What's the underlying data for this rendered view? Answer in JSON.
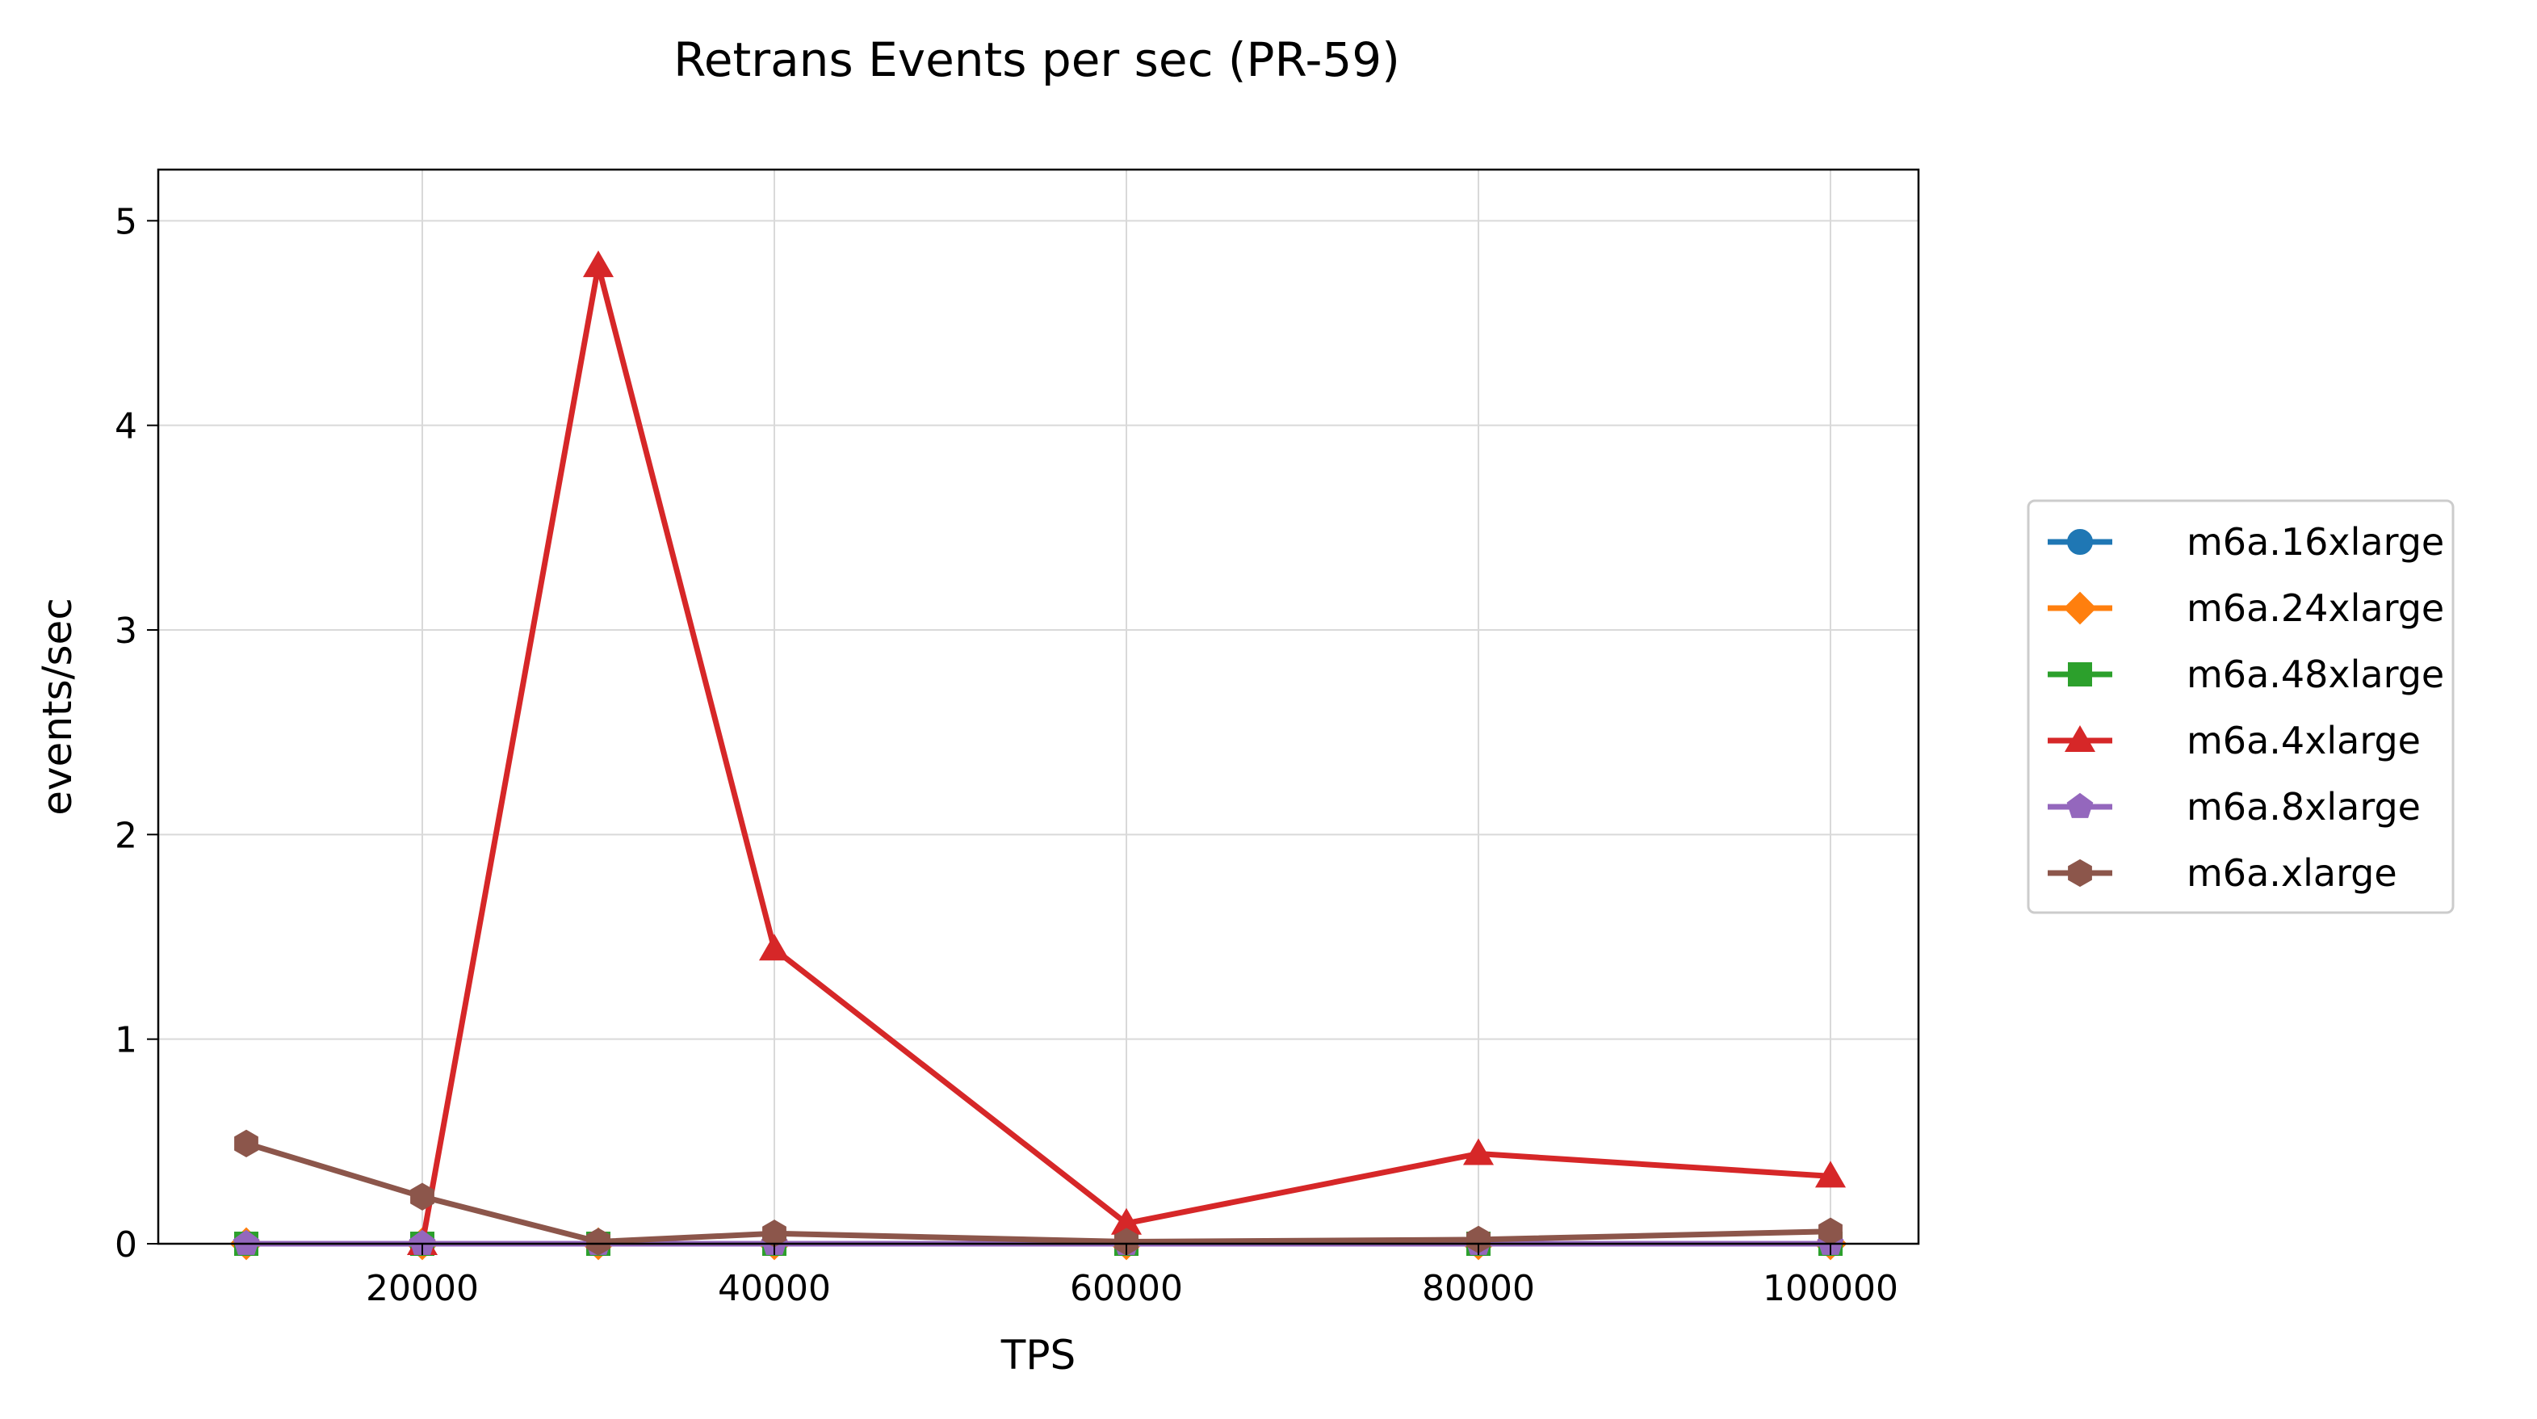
{
  "chart_data": {
    "type": "line",
    "title": "Retrans Events per sec (PR-59)",
    "xlabel": "TPS",
    "ylabel": "events/sec",
    "x": [
      10000,
      20000,
      30000,
      40000,
      60000,
      80000,
      100000
    ],
    "xlim": [
      5000,
      105000
    ],
    "ylim": [
      0,
      5.25
    ],
    "xticks": [
      20000,
      40000,
      60000,
      80000,
      100000
    ],
    "yticks": [
      0,
      1,
      2,
      3,
      4,
      5
    ],
    "grid": true,
    "legend_position": "right",
    "series": [
      {
        "name": "m6a.16xlarge",
        "color": "#1f77b4",
        "marker": "circle",
        "values": [
          0,
          0,
          0,
          0,
          0,
          0,
          0
        ]
      },
      {
        "name": "m6a.24xlarge",
        "color": "#ff7f0e",
        "marker": "diamond",
        "values": [
          0,
          0,
          0,
          0,
          0,
          0,
          0
        ]
      },
      {
        "name": "m6a.48xlarge",
        "color": "#2ca02c",
        "marker": "square",
        "values": [
          0,
          0,
          0,
          0,
          0,
          0,
          0
        ]
      },
      {
        "name": "m6a.4xlarge",
        "color": "#d62728",
        "marker": "triangle",
        "values": [
          null,
          0,
          4.78,
          1.44,
          0.1,
          0.44,
          0.33
        ]
      },
      {
        "name": "m6a.8xlarge",
        "color": "#9467bd",
        "marker": "pentagon",
        "values": [
          0,
          0,
          0,
          0,
          0,
          0,
          0
        ]
      },
      {
        "name": "m6a.xlarge",
        "color": "#8c564b",
        "marker": "hexagon",
        "values": [
          0.49,
          0.23,
          0.01,
          0.05,
          0.01,
          0.02,
          0.06
        ]
      }
    ]
  }
}
